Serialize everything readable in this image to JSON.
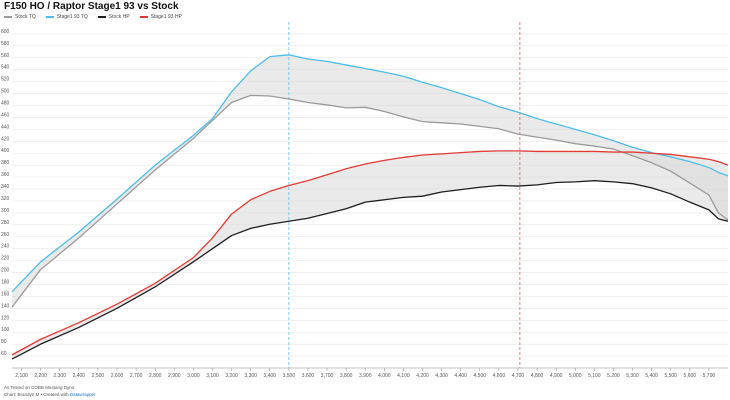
{
  "chart_data": {
    "type": "line",
    "title": "F150 HO / Raptor  Stage1 93 vs Stock",
    "xlabel": "",
    "ylabel": "",
    "xlim": [
      2050,
      5800
    ],
    "ylim": [
      40,
      620
    ],
    "x_ticks": [
      2100,
      2200,
      2300,
      2400,
      2500,
      2600,
      2700,
      2800,
      2900,
      3000,
      3100,
      3200,
      3300,
      3400,
      3500,
      3600,
      3700,
      3800,
      3900,
      4000,
      4100,
      4200,
      4300,
      4400,
      4500,
      4600,
      4700,
      4800,
      4900,
      5000,
      5100,
      5200,
      5300,
      5400,
      5500,
      5600,
      5700
    ],
    "x_tick_labels": [
      "2,100",
      "2,200",
      "2,300",
      "2,400",
      "2,500",
      "2,600",
      "2,700",
      "2,800",
      "2,900",
      "3,000",
      "3,100",
      "3,200",
      "3,300",
      "3,400",
      "3,500",
      "3,600",
      "3,700",
      "3,800",
      "3,900",
      "4,000",
      "4,100",
      "4,200",
      "4,300",
      "4,400",
      "4,500",
      "4,600",
      "4,700",
      "4,800",
      "4,900",
      "5,000",
      "5,100",
      "5,200",
      "5,300",
      "5,400",
      "5,500",
      "5,600",
      "5,700"
    ],
    "y_ticks": [
      60,
      80,
      100,
      120,
      140,
      160,
      180,
      200,
      220,
      240,
      260,
      280,
      300,
      320,
      340,
      360,
      380,
      400,
      420,
      440,
      460,
      480,
      500,
      520,
      540,
      560,
      580,
      600
    ],
    "grid": true,
    "legend_position": "top-left",
    "vertical_markers": [
      {
        "x": 3500,
        "color": "#5bc0e6"
      },
      {
        "x": 4710,
        "color": "#e06060"
      }
    ],
    "shaded_between": [
      [
        "Stock TQ",
        "Stage1 93 TQ"
      ],
      [
        "Stock HP",
        "Stage1 93 HP"
      ]
    ],
    "series": [
      {
        "name": "Stock TQ",
        "color": "#9a9a9a",
        "x": [
          2050,
          2200,
          2400,
          2600,
          2800,
          3000,
          3100,
          3200,
          3300,
          3400,
          3500,
          3600,
          3700,
          3800,
          3900,
          4000,
          4100,
          4200,
          4300,
          4400,
          4500,
          4600,
          4700,
          4800,
          4900,
          5000,
          5100,
          5200,
          5300,
          5400,
          5500,
          5600,
          5700,
          5750,
          5800
        ],
        "y": [
          142,
          205,
          258,
          315,
          372,
          425,
          455,
          485,
          497,
          496,
          491,
          485,
          481,
          476,
          477,
          470,
          461,
          453,
          451,
          449,
          445,
          441,
          432,
          427,
          422,
          416,
          412,
          407,
          396,
          384,
          370,
          350,
          330,
          300,
          288
        ]
      },
      {
        "name": "Stage1 93 TQ",
        "color": "#4cbde8",
        "x": [
          2050,
          2200,
          2400,
          2600,
          2800,
          3000,
          3100,
          3200,
          3300,
          3400,
          3500,
          3600,
          3700,
          3800,
          3900,
          4000,
          4100,
          4200,
          4300,
          4400,
          4500,
          4600,
          4700,
          4800,
          4900,
          5000,
          5100,
          5200,
          5300,
          5400,
          5500,
          5600,
          5700,
          5750,
          5800
        ],
        "y": [
          168,
          218,
          268,
          323,
          380,
          430,
          458,
          503,
          538,
          562,
          565,
          558,
          554,
          548,
          542,
          536,
          529,
          519,
          510,
          500,
          490,
          478,
          469,
          458,
          449,
          440,
          431,
          421,
          410,
          401,
          394,
          386,
          376,
          368,
          362
        ]
      },
      {
        "name": "Stock HP",
        "color": "#1e1e1e",
        "x": [
          2050,
          2200,
          2400,
          2600,
          2800,
          3000,
          3100,
          3200,
          3300,
          3400,
          3500,
          3600,
          3700,
          3800,
          3900,
          4000,
          4100,
          4200,
          4300,
          4400,
          4500,
          4600,
          4700,
          4800,
          4900,
          5000,
          5100,
          5200,
          5300,
          5400,
          5500,
          5600,
          5700,
          5750,
          5800
        ],
        "y": [
          55,
          80,
          108,
          140,
          176,
          218,
          240,
          262,
          274,
          281,
          286,
          291,
          299,
          307,
          318,
          322,
          326,
          328,
          335,
          339,
          343,
          346,
          345,
          347,
          351,
          352,
          354,
          352,
          349,
          342,
          332,
          318,
          305,
          290,
          286
        ]
      },
      {
        "name": "Stage1 93 HP",
        "color": "#e23a35",
        "x": [
          2050,
          2200,
          2400,
          2600,
          2800,
          3000,
          3100,
          3200,
          3300,
          3400,
          3500,
          3600,
          3700,
          3800,
          3900,
          4000,
          4100,
          4200,
          4300,
          4400,
          4500,
          4600,
          4700,
          4800,
          4900,
          5000,
          5100,
          5200,
          5300,
          5400,
          5500,
          5600,
          5700,
          5750,
          5800
        ],
        "y": [
          62,
          88,
          116,
          147,
          182,
          225,
          258,
          298,
          322,
          336,
          346,
          354,
          364,
          374,
          382,
          388,
          393,
          397,
          399,
          401,
          403,
          404,
          404,
          403,
          403,
          403,
          403,
          402,
          402,
          400,
          398,
          394,
          390,
          386,
          380
        ]
      }
    ]
  },
  "footer": {
    "line1": "As Tested on COBB Mustang Dyno",
    "line2_prefix": "Chart: Brandyn M • Created with ",
    "line2_link": "Datawrapper"
  }
}
